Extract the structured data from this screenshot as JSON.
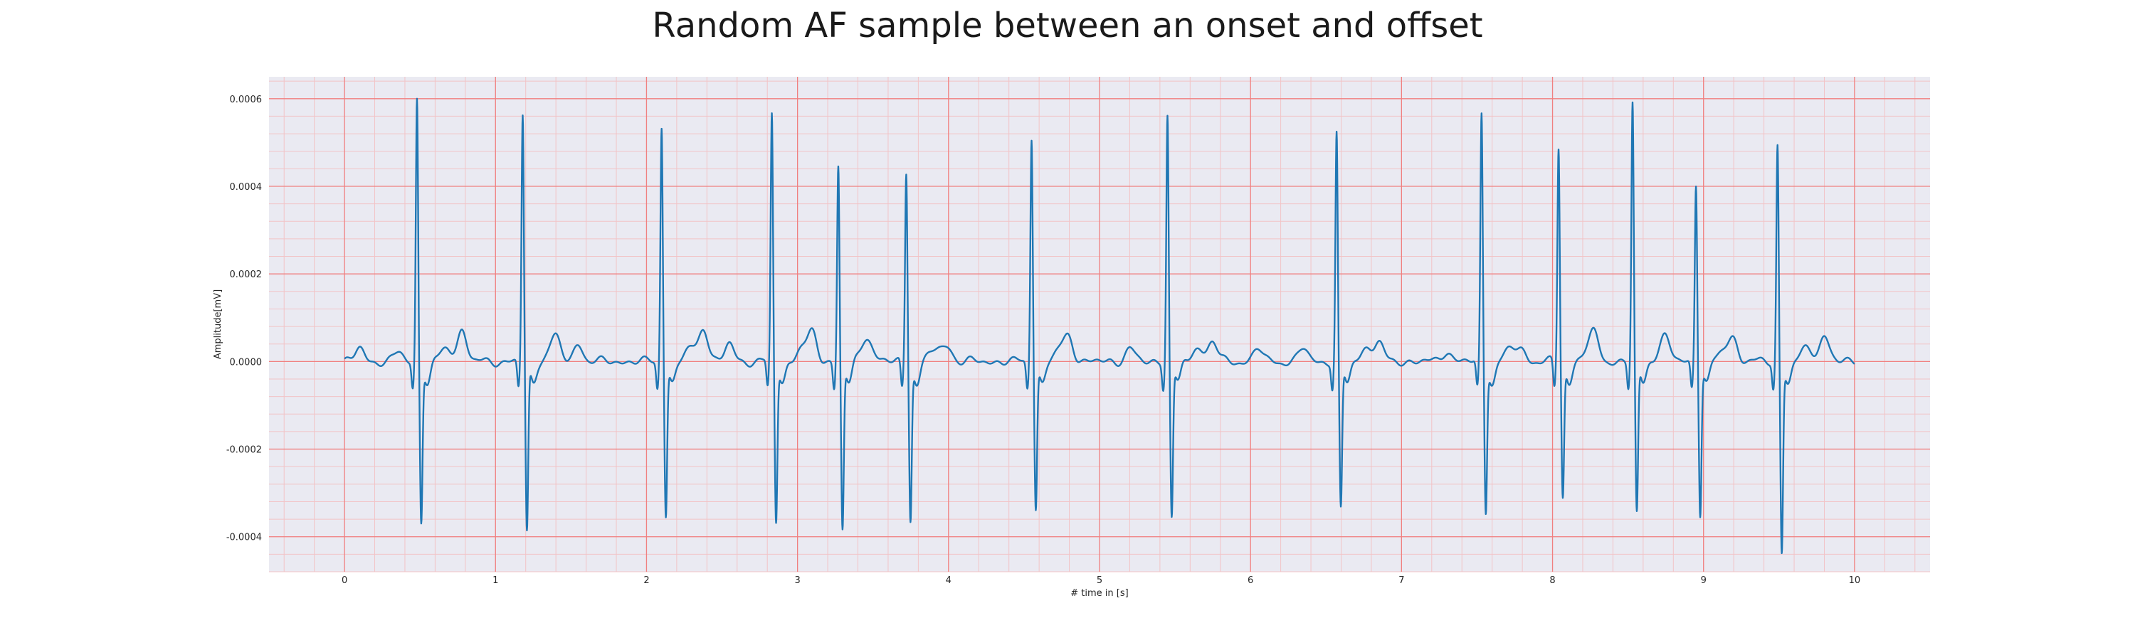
{
  "chart_data": {
    "type": "line",
    "title": "Random AF sample between an onset and offset",
    "xlabel": "# time in [s]",
    "ylabel": "Amplitude[mV]",
    "xlim": [
      -0.5,
      10.5
    ],
    "ylim": [
      -0.00048,
      0.00065
    ],
    "xticks": [
      0,
      1,
      2,
      3,
      4,
      5,
      6,
      7,
      8,
      9,
      10
    ],
    "xtick_labels": [
      "0",
      "1",
      "2",
      "3",
      "4",
      "5",
      "6",
      "7",
      "8",
      "9",
      "10"
    ],
    "yticks": [
      -0.0004,
      -0.0002,
      0.0,
      0.0002,
      0.0004,
      0.0006
    ],
    "ytick_labels": [
      "-0.0004",
      "-0.0002",
      "0.0000",
      "0.0002",
      "0.0004",
      "0.0006"
    ],
    "grid": true,
    "minor_grid": true,
    "colors": {
      "line": "#1f77b4",
      "plot_background": "#eaeaf2",
      "major_grid": "#f08080",
      "minor_grid": "#f2c3c6"
    },
    "series": [
      {
        "name": "",
        "beats": [
          {
            "t": 0.48,
            "peak": 0.0006,
            "trough": -0.00036
          },
          {
            "t": 1.18,
            "peak": 0.000565,
            "trough": -0.000385
          },
          {
            "t": 2.1,
            "peak": 0.00054,
            "trough": -0.000345
          },
          {
            "t": 2.83,
            "peak": 0.000565,
            "trough": -0.00036
          },
          {
            "t": 3.27,
            "peak": 0.00045,
            "trough": -0.00038
          },
          {
            "t": 3.72,
            "peak": 0.000435,
            "trough": -0.000355
          },
          {
            "t": 4.55,
            "peak": 0.000515,
            "trough": -0.00033
          },
          {
            "t": 5.45,
            "peak": 0.000565,
            "trough": -0.00035
          },
          {
            "t": 6.57,
            "peak": 0.00052,
            "trough": -0.000335
          },
          {
            "t": 7.53,
            "peak": 0.000565,
            "trough": -0.000335
          },
          {
            "t": 8.04,
            "peak": 0.00049,
            "trough": -0.000305
          },
          {
            "t": 8.53,
            "peak": 0.00059,
            "trough": -0.000345
          },
          {
            "t": 8.95,
            "peak": 0.00041,
            "trough": -0.00034
          },
          {
            "t": 9.49,
            "peak": 0.000495,
            "trough": -0.00043
          }
        ],
        "waves": [
          {
            "t": 0.1,
            "a": 3e-05
          },
          {
            "t": 0.36,
            "a": 2e-05
          },
          {
            "t": 0.78,
            "a": 7e-05
          },
          {
            "t": 1.4,
            "a": 3e-05
          },
          {
            "t": 1.55,
            "a": 4e-05
          },
          {
            "t": 2.38,
            "a": 7.5e-05
          },
          {
            "t": 2.55,
            "a": 4e-05
          },
          {
            "t": 3.1,
            "a": 6e-05
          },
          {
            "t": 3.45,
            "a": 3e-05
          },
          {
            "t": 4.0,
            "a": 3e-05
          },
          {
            "t": 4.8,
            "a": 4.5e-05
          },
          {
            "t": 5.2,
            "a": 3e-05
          },
          {
            "t": 5.75,
            "a": 4.5e-05
          },
          {
            "t": 6.05,
            "a": 3e-05
          },
          {
            "t": 6.35,
            "a": 3e-05
          },
          {
            "t": 6.85,
            "a": 4e-05
          },
          {
            "t": 7.3,
            "a": 2.5e-05
          },
          {
            "t": 7.8,
            "a": 2e-05
          },
          {
            "t": 8.28,
            "a": 4.5e-05
          },
          {
            "t": 8.75,
            "a": 3e-05
          },
          {
            "t": 9.2,
            "a": 4e-05
          },
          {
            "t": 9.8,
            "a": 6e-05
          }
        ]
      }
    ]
  }
}
